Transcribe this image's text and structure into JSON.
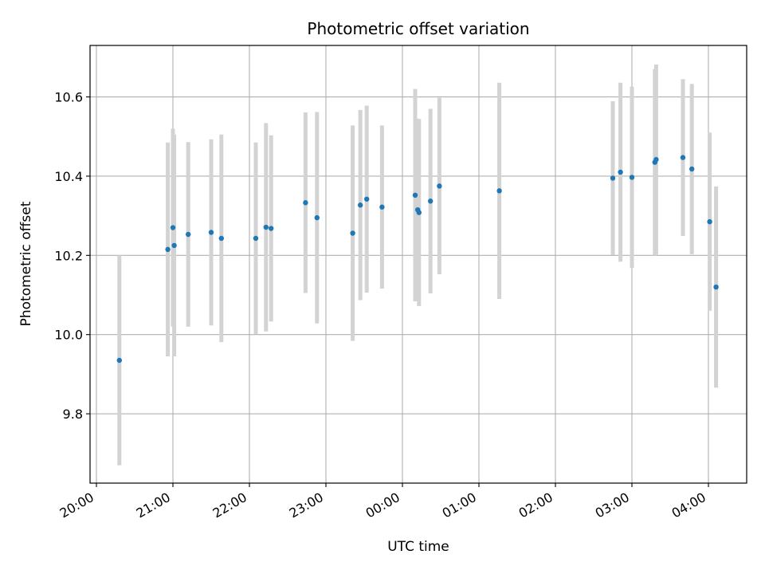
{
  "chart_data": {
    "type": "scatter",
    "title": "Photometric offset variation",
    "xlabel": "UTC time",
    "ylabel": "Photometric offset",
    "x_ticks": [
      "20:00",
      "21:00",
      "22:00",
      "23:00",
      "00:00",
      "01:00",
      "02:00",
      "03:00",
      "04:00"
    ],
    "y_ticks": [
      "9.8",
      "10.0",
      "10.2",
      "10.4",
      "10.6"
    ],
    "y_tick_values": [
      9.8,
      10.0,
      10.2,
      10.4,
      10.6
    ],
    "xlim": [
      "19:55",
      "04:30"
    ],
    "ylim": [
      9.625,
      10.73
    ],
    "grid": true,
    "colors": {
      "point": "#1f77b4",
      "errorbar": "#d3d3d3",
      "grid": "#b0b0b0"
    },
    "series": [
      {
        "x": [
          "20:18",
          "20:56",
          "21:00",
          "21:01",
          "21:12",
          "21:30",
          "21:38",
          "22:05",
          "22:13",
          "22:17",
          "22:44",
          "22:53",
          "23:21",
          "23:27",
          "23:32",
          "23:44",
          "00:10",
          "00:12",
          "00:13",
          "00:22",
          "00:29",
          "01:16",
          "02:45",
          "02:51",
          "03:00",
          "03:18",
          "03:19",
          "03:40",
          "03:47",
          "04:01",
          "04:06"
        ],
        "y": [
          9.935,
          10.215,
          10.27,
          10.225,
          10.253,
          10.258,
          10.243,
          10.243,
          10.271,
          10.268,
          10.333,
          10.295,
          10.256,
          10.327,
          10.342,
          10.322,
          10.352,
          10.315,
          10.308,
          10.337,
          10.375,
          10.363,
          10.395,
          10.41,
          10.397,
          10.435,
          10.442,
          10.447,
          10.418,
          10.285,
          10.12
        ],
        "yerr": [
          0.265,
          0.27,
          0.25,
          0.28,
          0.233,
          0.235,
          0.262,
          0.242,
          0.263,
          0.235,
          0.228,
          0.267,
          0.272,
          0.24,
          0.236,
          0.206,
          0.268,
          0.23,
          0.236,
          0.233,
          0.223,
          0.273,
          0.194,
          0.226,
          0.229,
          0.235,
          0.24,
          0.198,
          0.215,
          0.225,
          0.254
        ]
      }
    ]
  }
}
